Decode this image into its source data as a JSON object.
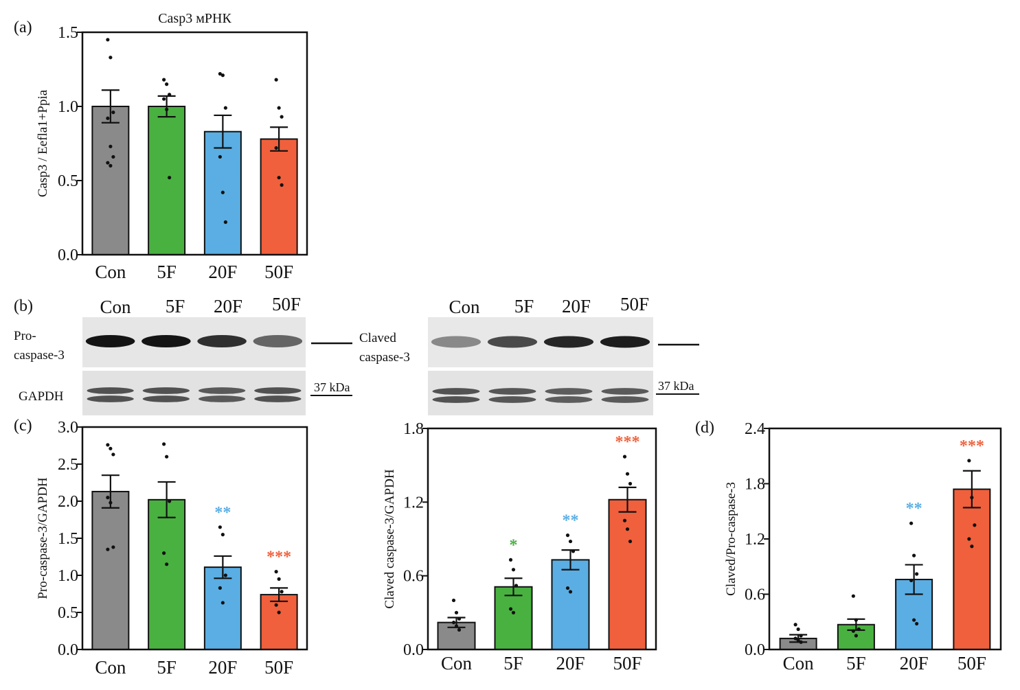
{
  "colors": {
    "Con": "#8a8a8a",
    "5F": "#49b140",
    "20F": "#5aaee3",
    "50F": "#f0603c",
    "axis": "#111111"
  },
  "panel_labels": {
    "a": "(a)",
    "b": "(b)",
    "c": "(c)",
    "d": "(d)"
  },
  "blots": {
    "left": {
      "lanes": [
        "Con",
        "5F",
        "20F",
        "50F"
      ],
      "top_label_line1": "Pro-",
      "top_label_line2": "caspase-3",
      "bottom_label": "GAPDH",
      "marker": "37 kDa",
      "top_band_intensity": [
        1.0,
        1.0,
        0.85,
        0.55
      ]
    },
    "right": {
      "lanes": [
        "Con",
        "5F",
        "20F",
        "50F"
      ],
      "top_label_line1": "Claved",
      "top_label_line2": "caspase-3",
      "marker": "37 kDa",
      "top_band_intensity": [
        0.35,
        0.7,
        0.9,
        0.95
      ]
    }
  },
  "chart_data": [
    {
      "id": "a",
      "type": "bar",
      "title": "Casp3 мРНК",
      "categories": [
        "Con",
        "5F",
        "20F",
        "50F"
      ],
      "values": [
        1.0,
        1.0,
        0.83,
        0.78
      ],
      "errors": [
        0.11,
        0.07,
        0.11,
        0.08
      ],
      "ylabel": "Casp3 / Eefla1+Ppia",
      "ylim": [
        0,
        1.5
      ],
      "yticks": [
        "0.0",
        "0.5",
        "1.0",
        "1.5"
      ],
      "significance": [
        "",
        "",
        "",
        ""
      ],
      "points": [
        [
          1.45,
          1.33,
          0.96,
          0.92,
          0.73,
          0.66,
          0.62,
          0.6
        ],
        [
          1.18,
          1.15,
          1.08,
          1.05,
          0.98,
          0.52
        ],
        [
          1.22,
          1.21,
          0.99,
          0.66,
          0.42,
          0.22
        ],
        [
          1.18,
          0.99,
          0.93,
          0.72,
          0.52,
          0.47
        ]
      ]
    },
    {
      "id": "c1",
      "type": "bar",
      "title": "",
      "categories": [
        "Con",
        "5F",
        "20F",
        "50F"
      ],
      "values": [
        2.13,
        2.02,
        1.11,
        0.74
      ],
      "errors": [
        0.22,
        0.24,
        0.15,
        0.09
      ],
      "ylabel": "Pro-caspase-3/GAPDH",
      "ylim": [
        0,
        3.0
      ],
      "yticks": [
        "0.0",
        "0.5",
        "1.0",
        "1.5",
        "2.0",
        "2.5",
        "3.0"
      ],
      "significance": [
        "",
        "",
        "**",
        "***"
      ],
      "points": [
        [
          2.76,
          2.71,
          2.63,
          2.05,
          1.98,
          1.38,
          1.35
        ],
        [
          2.77,
          2.6,
          2.0,
          1.3,
          1.15
        ],
        [
          1.65,
          1.55,
          1.0,
          0.83,
          0.63
        ],
        [
          1.05,
          0.95,
          0.78,
          0.6,
          0.5
        ]
      ]
    },
    {
      "id": "c2",
      "type": "bar",
      "title": "",
      "categories": [
        "Con",
        "5F",
        "20F",
        "50F"
      ],
      "values": [
        0.22,
        0.51,
        0.73,
        1.22
      ],
      "errors": [
        0.04,
        0.07,
        0.08,
        0.1
      ],
      "ylabel": "Claved caspase-3/GAPDH",
      "ylim": [
        0,
        1.8
      ],
      "yticks": [
        "0.0",
        "0.6",
        "1.2",
        "1.8"
      ],
      "significance": [
        "",
        "*",
        "**",
        "***"
      ],
      "points": [
        [
          0.4,
          0.3,
          0.25,
          0.22,
          0.19,
          0.16
        ],
        [
          0.73,
          0.65,
          0.52,
          0.33,
          0.3
        ],
        [
          0.93,
          0.88,
          0.8,
          0.5,
          0.47
        ],
        [
          1.57,
          1.43,
          1.35,
          1.05,
          0.98,
          0.88
        ]
      ]
    },
    {
      "id": "d",
      "type": "bar",
      "title": "",
      "categories": [
        "Con",
        "5F",
        "20F",
        "50F"
      ],
      "values": [
        0.12,
        0.27,
        0.76,
        1.74
      ],
      "errors": [
        0.04,
        0.06,
        0.16,
        0.2
      ],
      "ylabel": "Claved/Pro-caspase-3",
      "ylim": [
        0,
        2.4
      ],
      "yticks": [
        "0.0",
        "0.6",
        "1.2",
        "1.8",
        "2.4"
      ],
      "significance": [
        "",
        "",
        "**",
        "***"
      ],
      "points": [
        [
          0.27,
          0.22,
          0.15,
          0.12,
          0.1,
          0.08
        ],
        [
          0.58,
          0.32,
          0.22,
          0.2,
          0.15
        ],
        [
          1.37,
          1.02,
          0.82,
          0.75,
          0.32,
          0.28
        ],
        [
          2.05,
          1.65,
          1.35,
          1.2,
          1.12
        ]
      ]
    }
  ]
}
